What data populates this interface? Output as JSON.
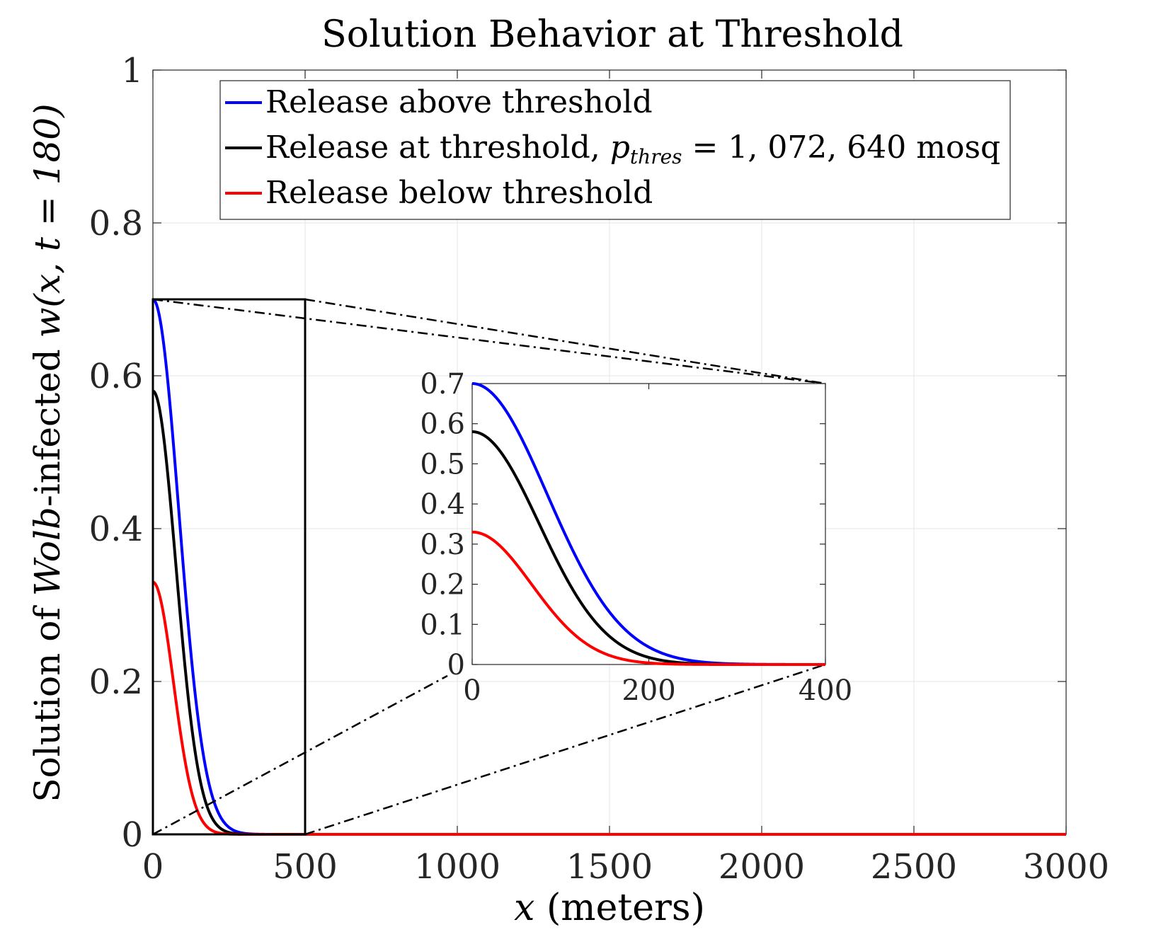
{
  "chart_data": {
    "type": "line",
    "title": "Solution Behavior at Threshold",
    "xlabel_var": "x",
    "xlabel_rest": " (meters)",
    "ylabel_pre": "Solution of ",
    "ylabel_wolb": "Wolb",
    "ylabel_mid": "-infected ",
    "ylabel_func": "w(x, t = 180)",
    "xlim": [
      0,
      3000
    ],
    "ylim": [
      0,
      1
    ],
    "xticks": [
      0,
      500,
      1000,
      1500,
      2000,
      2500,
      3000
    ],
    "xtick_labels": [
      "0",
      "500",
      "1000",
      "1500",
      "2000",
      "2500",
      "3000"
    ],
    "yticks": [
      0,
      0.2,
      0.4,
      0.6,
      0.8,
      1
    ],
    "ytick_labels": [
      "0",
      "0.2",
      "0.4",
      "0.6",
      "0.8",
      "1"
    ],
    "grid": true,
    "legend_position": "top",
    "legend": [
      {
        "label": "Release above threshold",
        "color": "#0000ff"
      },
      {
        "label_pre": "Release at threshold, ",
        "label_var": "p",
        "label_sub": "thres",
        "label_post": " = 1, 072, 640 mosq",
        "color": "#000000"
      },
      {
        "label": "Release below threshold",
        "color": "#ff0000"
      }
    ],
    "series": [
      {
        "name": "Release above threshold",
        "color": "#0000ff",
        "peak": 0.7,
        "width": 120
      },
      {
        "name": "Release at threshold",
        "color": "#000000",
        "peak": 0.58,
        "width": 107
      },
      {
        "name": "Release below threshold",
        "color": "#ff0000",
        "peak": 0.33,
        "width": 95
      }
    ],
    "zoom_box": {
      "x": [
        0,
        500
      ],
      "y": [
        0,
        0.7
      ]
    },
    "inset": {
      "xlim": [
        0,
        400
      ],
      "ylim": [
        0,
        0.7
      ],
      "xticks": [
        0,
        200,
        400
      ],
      "xtick_labels": [
        "0",
        "200",
        "400"
      ],
      "yticks": [
        0,
        0.1,
        0.2,
        0.3,
        0.4,
        0.5,
        0.6,
        0.7
      ],
      "ytick_labels": [
        "0",
        "0.1",
        "0.2",
        "0.3",
        "0.4",
        "0.5",
        "0.6",
        "0.7"
      ]
    }
  }
}
